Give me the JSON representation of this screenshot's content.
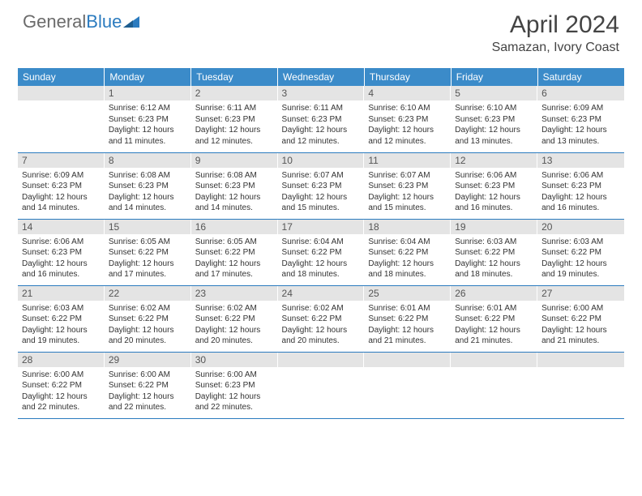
{
  "brand": {
    "part1": "General",
    "part2": "Blue"
  },
  "title": "April 2024",
  "location": "Samazan, Ivory Coast",
  "theme": {
    "header_bg": "#3b8bc9",
    "header_text": "#ffffff",
    "daynum_bg": "#e4e4e4",
    "row_border": "#2b7bbf",
    "page_bg": "#ffffff",
    "logo_blue": "#2b7bbf",
    "text_color": "#333333"
  },
  "columns": [
    "Sunday",
    "Monday",
    "Tuesday",
    "Wednesday",
    "Thursday",
    "Friday",
    "Saturday"
  ],
  "weeks": [
    [
      null,
      {
        "n": "1",
        "sr": "6:12 AM",
        "ss": "6:23 PM",
        "dl": "12 hours and 11 minutes."
      },
      {
        "n": "2",
        "sr": "6:11 AM",
        "ss": "6:23 PM",
        "dl": "12 hours and 12 minutes."
      },
      {
        "n": "3",
        "sr": "6:11 AM",
        "ss": "6:23 PM",
        "dl": "12 hours and 12 minutes."
      },
      {
        "n": "4",
        "sr": "6:10 AM",
        "ss": "6:23 PM",
        "dl": "12 hours and 12 minutes."
      },
      {
        "n": "5",
        "sr": "6:10 AM",
        "ss": "6:23 PM",
        "dl": "12 hours and 13 minutes."
      },
      {
        "n": "6",
        "sr": "6:09 AM",
        "ss": "6:23 PM",
        "dl": "12 hours and 13 minutes."
      }
    ],
    [
      {
        "n": "7",
        "sr": "6:09 AM",
        "ss": "6:23 PM",
        "dl": "12 hours and 14 minutes."
      },
      {
        "n": "8",
        "sr": "6:08 AM",
        "ss": "6:23 PM",
        "dl": "12 hours and 14 minutes."
      },
      {
        "n": "9",
        "sr": "6:08 AM",
        "ss": "6:23 PM",
        "dl": "12 hours and 14 minutes."
      },
      {
        "n": "10",
        "sr": "6:07 AM",
        "ss": "6:23 PM",
        "dl": "12 hours and 15 minutes."
      },
      {
        "n": "11",
        "sr": "6:07 AM",
        "ss": "6:23 PM",
        "dl": "12 hours and 15 minutes."
      },
      {
        "n": "12",
        "sr": "6:06 AM",
        "ss": "6:23 PM",
        "dl": "12 hours and 16 minutes."
      },
      {
        "n": "13",
        "sr": "6:06 AM",
        "ss": "6:23 PM",
        "dl": "12 hours and 16 minutes."
      }
    ],
    [
      {
        "n": "14",
        "sr": "6:06 AM",
        "ss": "6:23 PM",
        "dl": "12 hours and 16 minutes."
      },
      {
        "n": "15",
        "sr": "6:05 AM",
        "ss": "6:22 PM",
        "dl": "12 hours and 17 minutes."
      },
      {
        "n": "16",
        "sr": "6:05 AM",
        "ss": "6:22 PM",
        "dl": "12 hours and 17 minutes."
      },
      {
        "n": "17",
        "sr": "6:04 AM",
        "ss": "6:22 PM",
        "dl": "12 hours and 18 minutes."
      },
      {
        "n": "18",
        "sr": "6:04 AM",
        "ss": "6:22 PM",
        "dl": "12 hours and 18 minutes."
      },
      {
        "n": "19",
        "sr": "6:03 AM",
        "ss": "6:22 PM",
        "dl": "12 hours and 18 minutes."
      },
      {
        "n": "20",
        "sr": "6:03 AM",
        "ss": "6:22 PM",
        "dl": "12 hours and 19 minutes."
      }
    ],
    [
      {
        "n": "21",
        "sr": "6:03 AM",
        "ss": "6:22 PM",
        "dl": "12 hours and 19 minutes."
      },
      {
        "n": "22",
        "sr": "6:02 AM",
        "ss": "6:22 PM",
        "dl": "12 hours and 20 minutes."
      },
      {
        "n": "23",
        "sr": "6:02 AM",
        "ss": "6:22 PM",
        "dl": "12 hours and 20 minutes."
      },
      {
        "n": "24",
        "sr": "6:02 AM",
        "ss": "6:22 PM",
        "dl": "12 hours and 20 minutes."
      },
      {
        "n": "25",
        "sr": "6:01 AM",
        "ss": "6:22 PM",
        "dl": "12 hours and 21 minutes."
      },
      {
        "n": "26",
        "sr": "6:01 AM",
        "ss": "6:22 PM",
        "dl": "12 hours and 21 minutes."
      },
      {
        "n": "27",
        "sr": "6:00 AM",
        "ss": "6:22 PM",
        "dl": "12 hours and 21 minutes."
      }
    ],
    [
      {
        "n": "28",
        "sr": "6:00 AM",
        "ss": "6:22 PM",
        "dl": "12 hours and 22 minutes."
      },
      {
        "n": "29",
        "sr": "6:00 AM",
        "ss": "6:22 PM",
        "dl": "12 hours and 22 minutes."
      },
      {
        "n": "30",
        "sr": "6:00 AM",
        "ss": "6:23 PM",
        "dl": "12 hours and 22 minutes."
      },
      null,
      null,
      null,
      null
    ]
  ],
  "labels": {
    "sunrise": "Sunrise:",
    "sunset": "Sunset:",
    "daylight": "Daylight:"
  }
}
